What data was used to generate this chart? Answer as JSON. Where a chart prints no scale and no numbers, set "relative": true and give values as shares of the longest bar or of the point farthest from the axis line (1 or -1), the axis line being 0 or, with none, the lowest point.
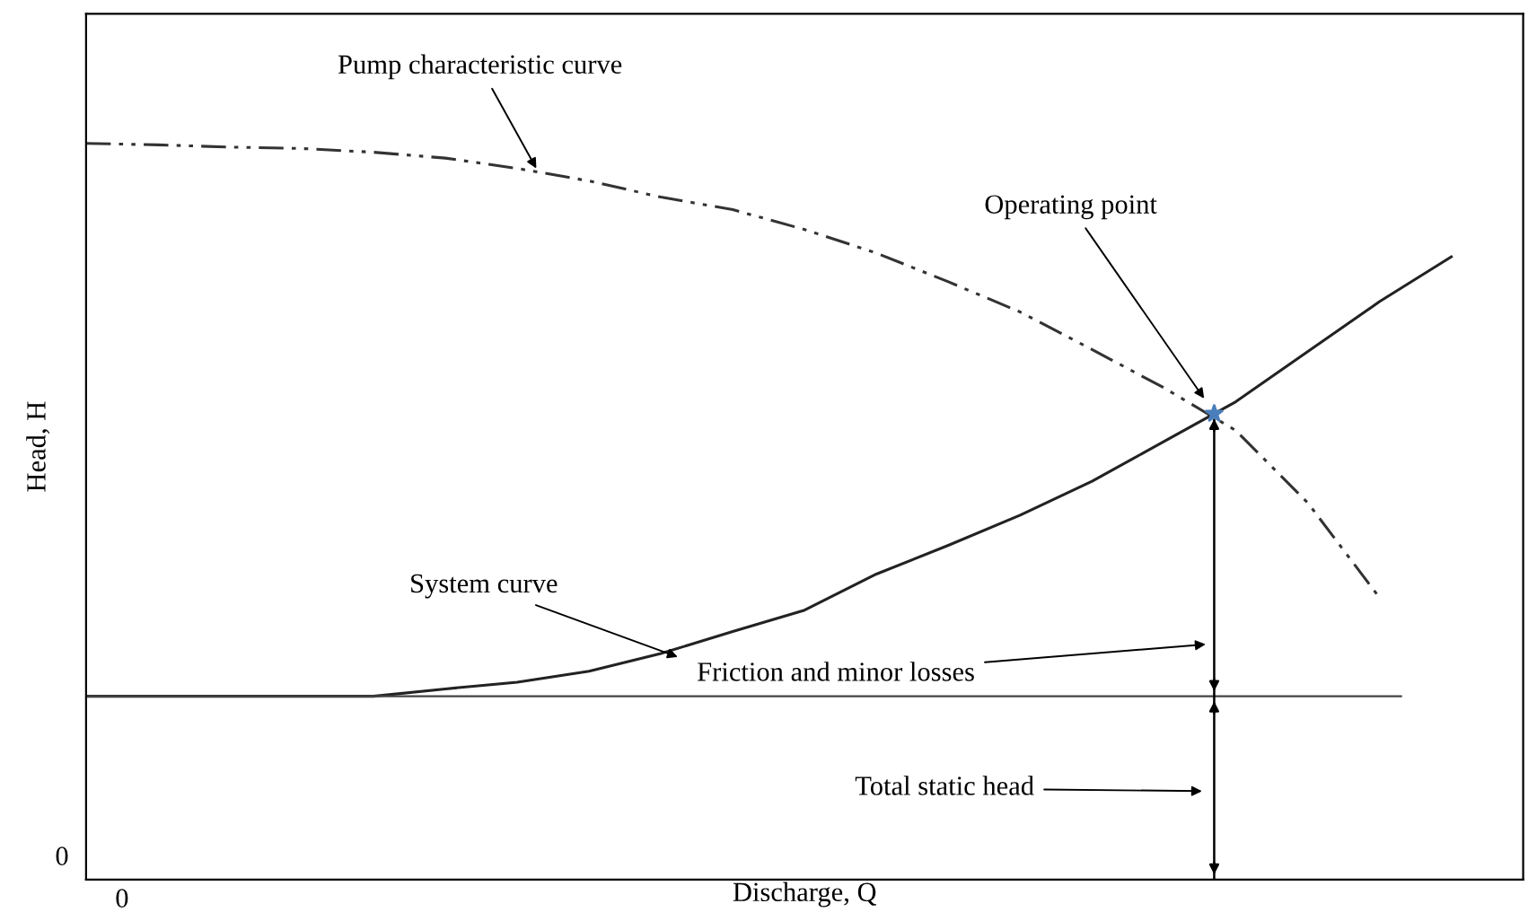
{
  "chart_data": {
    "type": "line",
    "relative": true,
    "xlabel": "Discharge, Q",
    "ylabel": "Head, H",
    "categories": [
      null,
      null,
      null,
      null,
      null,
      null,
      null,
      null,
      null,
      null,
      null,
      null,
      null,
      null,
      null,
      null,
      null,
      null,
      null,
      null
    ],
    "series": [
      {
        "color": "#333333",
        "line_style": "dashed",
        "marker": "none",
        "values": [
          1,
          0.998,
          0.995,
          0.993,
          0.988,
          0.98,
          0.966,
          0.949,
          0.927,
          0.91,
          0.883,
          0.851,
          0.812,
          0.771,
          0.72,
          0.668,
          0.61,
          0.512,
          0.383,
          null
        ]
      },
      {
        "color": "#222222",
        "line_style": "solid",
        "marker": "none",
        "values": [
          0.249,
          0.249,
          0.249,
          0.249,
          0.249,
          0.259,
          0.268,
          0.283,
          0.307,
          0.337,
          0.366,
          0.415,
          0.454,
          0.495,
          0.541,
          0.595,
          0.649,
          0.717,
          0.785,
          0.846
        ]
      }
    ],
    "ref_lines": [
      {
        "axis": "y",
        "value": 0.249,
        "color": "#444444"
      }
    ],
    "annotations": [
      "Pump characteristic curve",
      "Operating point",
      "System curve",
      "Friction and minor losses",
      "Total static head",
      "0",
      "0"
    ]
  }
}
